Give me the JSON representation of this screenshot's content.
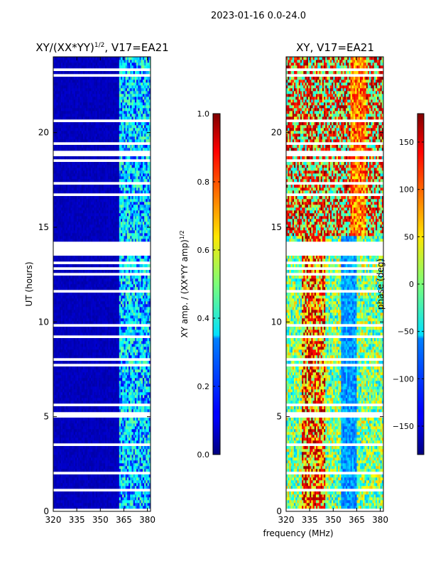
{
  "chart_data": {
    "type": "heatmap",
    "suptitle": "2023-01-16 0.0-24.0",
    "shared_xlabel": "frequency (MHz)",
    "panels": [
      {
        "id": "amp",
        "title": "XY/(XX*YY)",
        "title_sup": "1/2",
        "title_suffix": ", V17=EA21",
        "ylabel": "UT (hours)",
        "xlim": [
          320,
          382
        ],
        "ylim": [
          0,
          24
        ],
        "xticks": [
          320,
          335,
          350,
          365,
          380
        ],
        "yticks": [
          0,
          5,
          10,
          15,
          20
        ],
        "colormap": "jet",
        "colorbar": {
          "label": "XY amp. / (XX*YY amp)",
          "label_sup": "1/2",
          "range": [
            0,
            1
          ],
          "ticks": [
            "0.0",
            "0.2",
            "0.4",
            "0.6",
            "0.8",
            "1.0"
          ],
          "tick_values": [
            0,
            0.2,
            0.4,
            0.6,
            0.8,
            1.0
          ]
        }
      },
      {
        "id": "phase",
        "title": "XY, V17=EA21",
        "ylabel": "phase (deg)",
        "xlim": [
          320,
          382
        ],
        "ylim": [
          0,
          24
        ],
        "xticks": [
          320,
          335,
          350,
          365,
          380
        ],
        "yticks": [
          0,
          5,
          10,
          15,
          20
        ],
        "colormap": "jet",
        "colorbar": {
          "label": "phase (deg)",
          "range": [
            -180,
            180
          ],
          "ticks": [
            "150",
            "100",
            "50",
            "0",
            "−50",
            "−100",
            "−150"
          ],
          "tick_values": [
            150,
            100,
            50,
            0,
            -50,
            -100,
            -150
          ]
        }
      }
    ],
    "flagged_ut_bands": [
      [
        0.0,
        0.08
      ],
      [
        1.05,
        1.25
      ],
      [
        1.95,
        2.05
      ],
      [
        2.5,
        2.55
      ],
      [
        3.25,
        3.35
      ],
      [
        3.5,
        3.6
      ],
      [
        4.9,
        5.3
      ],
      [
        5.6,
        5.7
      ],
      [
        5.95,
        6.05
      ],
      [
        6.6,
        6.65
      ],
      [
        7.5,
        7.55
      ],
      [
        7.7,
        7.8
      ],
      [
        8.0,
        8.08
      ],
      [
        9.2,
        9.25
      ],
      [
        9.8,
        9.85
      ],
      [
        10.15,
        10.25
      ],
      [
        11.1,
        11.15
      ],
      [
        11.6,
        11.65
      ],
      [
        12.15,
        12.2
      ],
      [
        12.5,
        12.55
      ],
      [
        12.8,
        12.85
      ],
      [
        13.1,
        13.15
      ],
      [
        13.55,
        14.3
      ],
      [
        14.8,
        14.85
      ],
      [
        15.4,
        15.45
      ],
      [
        16.0,
        16.05
      ],
      [
        16.3,
        16.35
      ],
      [
        16.7,
        16.75
      ],
      [
        17.3,
        17.35
      ],
      [
        17.95,
        18.05
      ],
      [
        18.4,
        18.55
      ],
      [
        18.7,
        19.0
      ],
      [
        19.4,
        19.45
      ],
      [
        20.1,
        20.15
      ],
      [
        20.6,
        20.65
      ],
      [
        21.3,
        21.35
      ],
      [
        21.7,
        21.75
      ],
      [
        22.2,
        22.25
      ],
      [
        22.8,
        22.85
      ],
      [
        23.0,
        23.05
      ],
      [
        23.3,
        23.35
      ]
    ]
  }
}
